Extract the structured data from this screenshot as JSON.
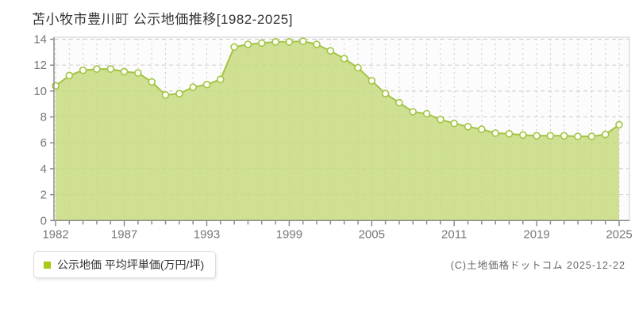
{
  "title": "苫小牧市豊川町 公示地価推移[1982-2025]",
  "legend": {
    "label": "公示地価 平均坪単価(万円/坪)",
    "marker_color": "#a6cb17"
  },
  "footer": {
    "copyright": "(C)土地価格ドットコム 2025-12-22"
  },
  "colors": {
    "line": "#a2c444",
    "area_fill": "#c3d878",
    "point_fill": "#fdfef4",
    "grid": "#cccccc",
    "axis": "#8c8c8c",
    "tick_text": "#777777",
    "plot_bg": "#fcfcfc"
  },
  "chart_data": {
    "type": "area",
    "title": "苫小牧市豊川町 公示地価推移[1982-2025]",
    "ylabel": "平均坪単価(万円/坪)",
    "ylim": [
      0,
      14
    ],
    "y_ticks": [
      0,
      2,
      4,
      6,
      8,
      10,
      12,
      14
    ],
    "x_range_label": "1982-2025",
    "x_tick_labels": [
      "1982",
      "1987",
      "1993",
      "1999",
      "2005",
      "2011",
      "2019",
      "2025"
    ],
    "x_tick_indices": [
      0,
      5,
      11,
      17,
      23,
      29,
      35,
      41
    ],
    "n_points": 42,
    "grid": true,
    "legend_position": "bottom-left",
    "series": [
      {
        "name": "公示地価 平均坪単価(万円/坪)",
        "values": [
          10.4,
          11.2,
          11.6,
          11.7,
          11.7,
          11.5,
          11.4,
          10.7,
          9.7,
          9.8,
          10.3,
          10.5,
          10.9,
          13.4,
          13.6,
          13.7,
          13.8,
          13.8,
          13.85,
          13.6,
          13.1,
          12.5,
          11.8,
          10.8,
          9.8,
          9.1,
          8.4,
          8.25,
          7.8,
          7.5,
          7.25,
          7.05,
          6.75,
          6.7,
          6.6,
          6.55,
          6.55,
          6.55,
          6.5,
          6.5,
          6.65,
          7.4
        ]
      }
    ]
  }
}
